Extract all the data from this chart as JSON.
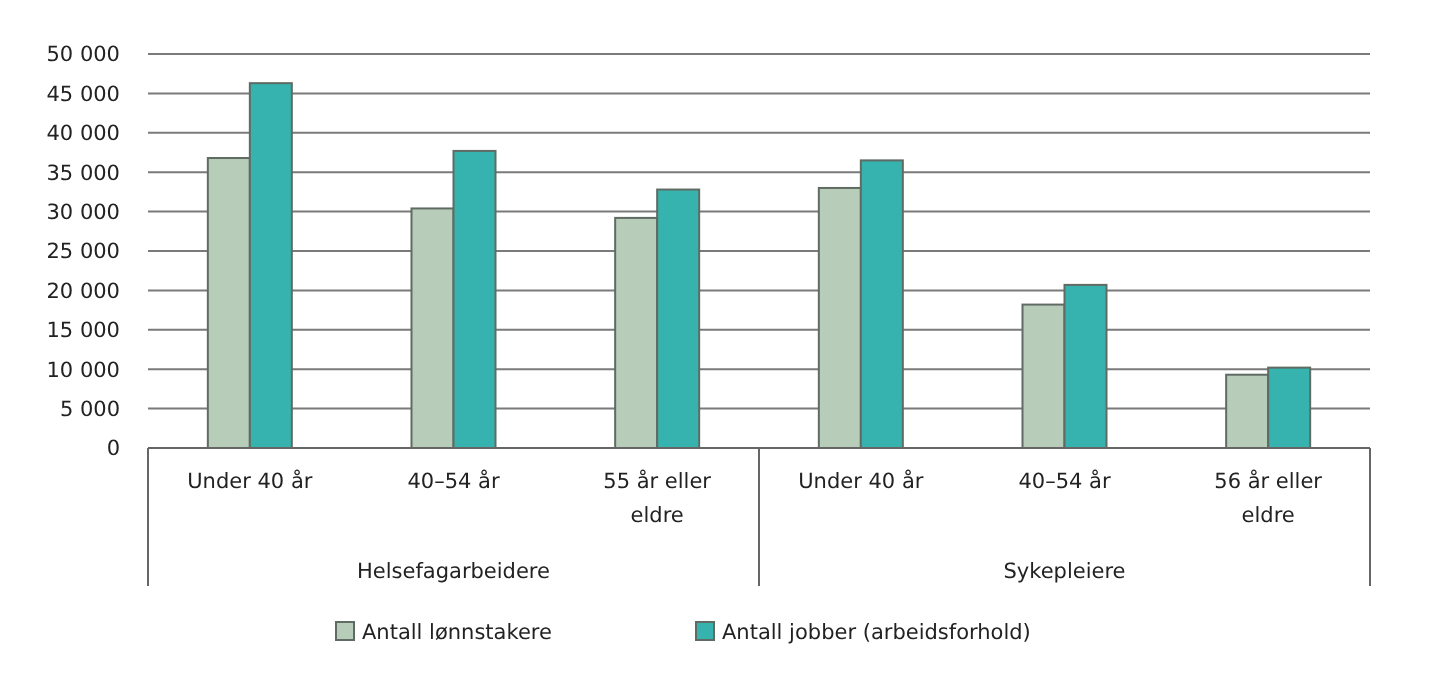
{
  "chart_data": {
    "type": "bar",
    "categories": [
      "Under 40 år",
      "40–54 år",
      "55 år eller eldre",
      "Under 40 år",
      "40–54 år",
      "56 år eller eldre"
    ],
    "series": [
      {
        "name": "Antall lønnstakere",
        "color": "#b8cdb9",
        "values": [
          36800,
          30400,
          29200,
          33000,
          18200,
          9300
        ]
      },
      {
        "name": "Antall jobber (arbeidsforhold)",
        "color": "#36b3ae",
        "values": [
          46300,
          37700,
          32800,
          36500,
          20700,
          10200
        ]
      }
    ],
    "ylim": [
      0,
      50000
    ],
    "yticks": [
      {
        "value": 0,
        "label": "0"
      },
      {
        "value": 5000,
        "label": "5 000"
      },
      {
        "value": 10000,
        "label": "10 000"
      },
      {
        "value": 15000,
        "label": "15 000"
      },
      {
        "value": 20000,
        "label": "20 000"
      },
      {
        "value": 25000,
        "label": "25 000"
      },
      {
        "value": 30000,
        "label": "30 000"
      },
      {
        "value": 35000,
        "label": "35 000"
      },
      {
        "value": 40000,
        "label": "40 000"
      },
      {
        "value": 45000,
        "label": "45 000"
      },
      {
        "value": 50000,
        "label": "50 000"
      }
    ],
    "grid": "y",
    "legend": "bottom",
    "annotations": [
      "Helsefagarbeidere",
      "Sykepleiere"
    ]
  }
}
